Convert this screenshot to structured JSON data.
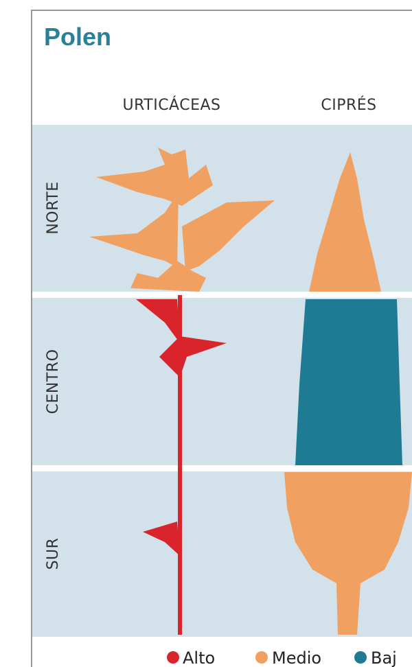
{
  "header": {
    "title": "Polen"
  },
  "columns": [
    "URTICÁCEAS",
    "CIPRÉS"
  ],
  "rows": [
    "NORTE",
    "CENTRO",
    "SUR"
  ],
  "legend": [
    "Alto",
    "Medio",
    "Baj"
  ]
}
